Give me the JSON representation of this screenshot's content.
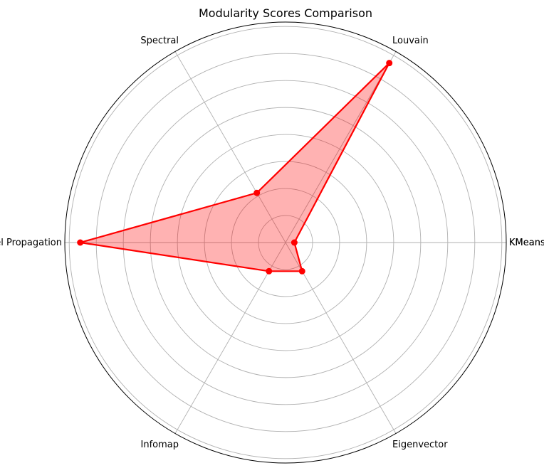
{
  "chart_data": {
    "type": "radar",
    "title": "Modularity Scores Comparison",
    "categories": [
      "KMeans",
      "Louvain",
      "Spectral",
      "Label Propagation",
      "Infomap",
      "Eigenvector"
    ],
    "series": [
      {
        "values": [
          0.04,
          0.94,
          0.26,
          0.93,
          0.15,
          0.15
        ],
        "color": "#ff0000",
        "fill_color": "#ff0000",
        "fill_opacity": 0.3
      }
    ],
    "rlim": [
      0,
      1
    ],
    "r_gridlines": 8,
    "grid": true,
    "closing_label_overlap": true
  }
}
